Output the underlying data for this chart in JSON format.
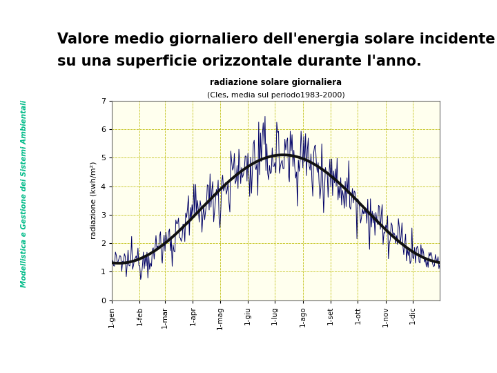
{
  "title_main_line1": "Valore medio giornaliero dell'energia solare incidente",
  "title_main_line2": "su una superficie orizzontale durante l'anno.",
  "title_main_fontsize": 15,
  "sidebar_text": "Modellistica e Gestione dei Sistemi Ambientali",
  "sidebar_color": "#00BB88",
  "chart_title_line1": "radiazione solare giornaliera",
  "chart_title_line2": "(Cles, media sul periodo1983-2000)",
  "ylabel": "radiazione (kwh/m²)",
  "xlabel_ticks": [
    "1-gen",
    "1-feb",
    "1-mar",
    "1-apr",
    "1-mag",
    "1-giu",
    "1-lug",
    "1-ago",
    "1-set",
    "1-ott",
    "1-nov",
    "1-dic"
  ],
  "ylim": [
    0,
    7
  ],
  "yticks": [
    0,
    1,
    2,
    3,
    4,
    5,
    6,
    7
  ],
  "background_color": "#FFFFFF",
  "chart_bg_color": "#FFFFEE",
  "smooth_color": "#111111",
  "noisy_color": "#000066",
  "left_line_color": "#CC8800",
  "smooth_peak": 5.1,
  "smooth_base": 1.3,
  "peak_day": 190,
  "noise_summer_scale": 0.55,
  "noise_winter_scale": 0.15
}
